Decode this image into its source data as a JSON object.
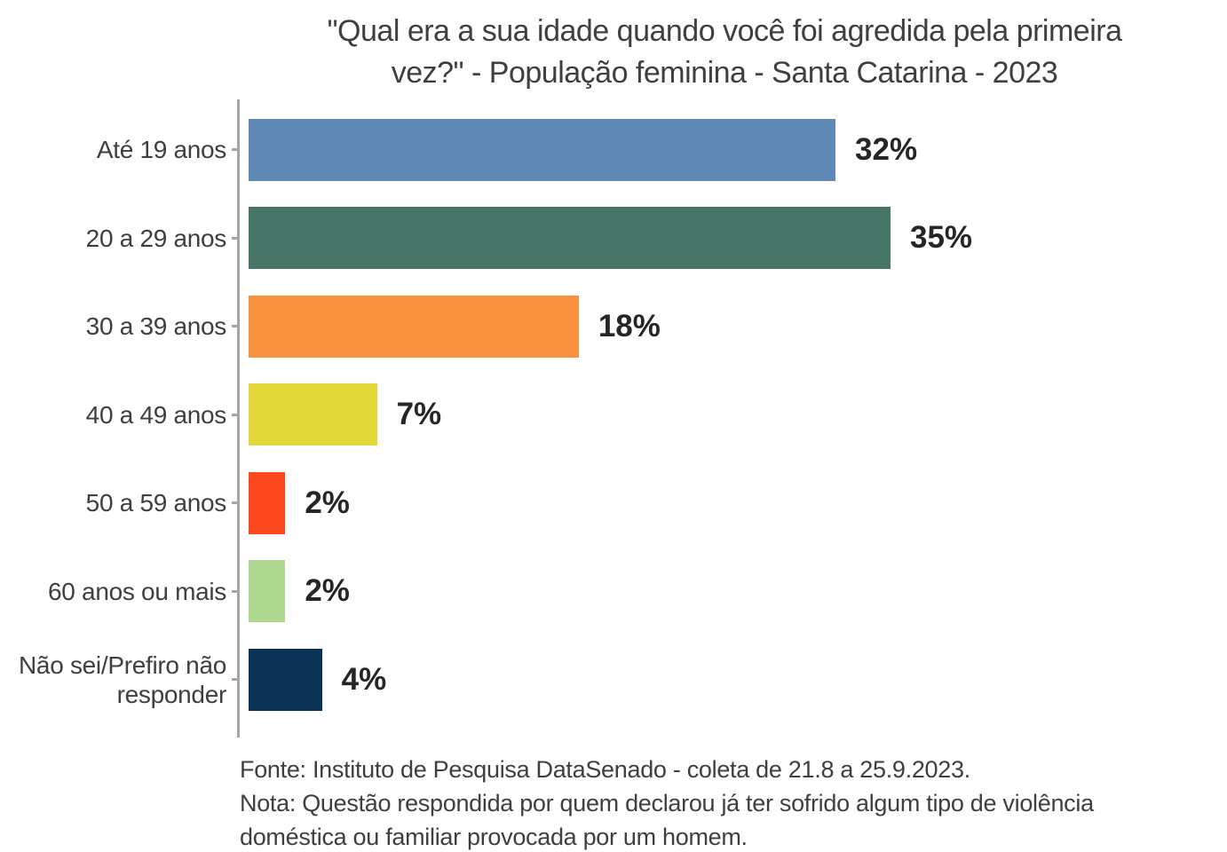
{
  "header": {
    "title_line1": "\"Qual era a sua idade quando você foi agredida pela primeira",
    "title_line2": "vez?\" - População feminina - Santa Catarina - 2023"
  },
  "chart_data": {
    "type": "bar",
    "orientation": "horizontal",
    "title": "\"Qual era a sua idade quando você foi agredida pela primeira vez?\" - População feminina - Santa Catarina - 2023",
    "categories": [
      "Até 19 anos",
      "20 a 29 anos",
      "30 a 39 anos",
      "40 a 49 anos",
      "50 a 59 anos",
      "60 anos ou mais",
      "Não sei/Prefiro não responder"
    ],
    "values": [
      32,
      35,
      18,
      7,
      2,
      2,
      4
    ],
    "value_labels": [
      "32%",
      "35%",
      "18%",
      "7%",
      "2%",
      "2%",
      "4%"
    ],
    "colors": [
      "#6189b5",
      "#467568",
      "#f9923e",
      "#e2d83a",
      "#fb471d",
      "#aed790",
      "#0b3254"
    ],
    "unit": "%",
    "xlabel": "",
    "ylabel": "",
    "xlim": [
      0,
      53
    ],
    "grid": false,
    "legend": false,
    "axis_color": "#a6a6a6",
    "value_label_position": "right-of-bar"
  },
  "footer": {
    "line1": "Fonte: Instituto de Pesquisa DataSenado - coleta de 21.8 a 25.9.2023.",
    "line2": "Nota: Questão respondida por quem declarou já ter sofrido algum tipo de violência",
    "line3": "doméstica ou familiar provocada por um homem."
  }
}
